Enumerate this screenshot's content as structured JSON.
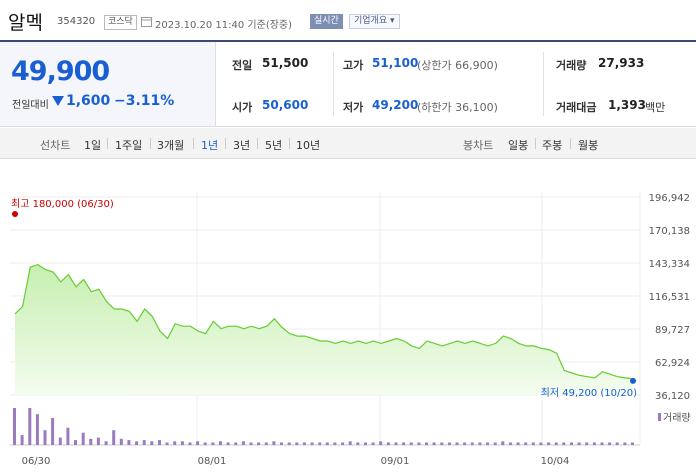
{
  "header": {
    "name": "알멕",
    "code": "354320",
    "market": "코스닥",
    "datetime": "2023.10.20 11:40  기준(장중)",
    "realtime_label": "실시간",
    "company_info_label": "기업개요 ▾"
  },
  "quote": {
    "price": "49,900",
    "change_label": "전일대비",
    "change_abs": "1,600",
    "change_pct": "−3.11%"
  },
  "stats": {
    "prev_close_label": "전일",
    "prev_close": "51,500",
    "open_label": "시가",
    "open": "50,600",
    "high_label": "고가",
    "high": "51,100",
    "upper_limit": "(상한가 66,900)",
    "low_label": "저가",
    "low": "49,200",
    "lower_limit": "(하한가 36,100)",
    "volume_label": "거래량",
    "volume": "27,933",
    "value_label": "거래대금",
    "value": "1,393",
    "value_unit": "백만"
  },
  "period_bar": {
    "chart_label": "선차트",
    "periods": [
      "1일",
      "1주일",
      "3개월",
      "1년",
      "3년",
      "5년",
      "10년"
    ],
    "active": "1년",
    "candle_label": "봉차트",
    "candles": [
      "일봉",
      "주봉",
      "월봉"
    ]
  },
  "colors": {
    "accent": "#1a5fd1",
    "line": "#66cc33",
    "area_top": "#c6efb0",
    "volume": "#9b7bbf",
    "high_marker": "#cc0000"
  },
  "chart_data": {
    "type": "area",
    "x_ticks": [
      "06/30",
      "08/01",
      "09/01",
      "10/04"
    ],
    "y_ticks": [
      "196,942",
      "170,138",
      "143,334",
      "116,531",
      "89,727",
      "62,924",
      "36,120"
    ],
    "ylim": [
      36120,
      196942
    ],
    "high_annotation": "최고 180,000 (06/30)",
    "low_annotation": "최저  49,200 (10/20)",
    "volume_label": "거래량",
    "price": [
      102000,
      108000,
      140000,
      142000,
      138000,
      136000,
      128000,
      134000,
      124000,
      130000,
      120000,
      122000,
      112000,
      106000,
      106000,
      104000,
      96000,
      106000,
      100000,
      88000,
      82000,
      94000,
      92000,
      92000,
      88000,
      86000,
      96000,
      90000,
      92000,
      92000,
      90000,
      92000,
      90000,
      92000,
      98000,
      91000,
      86000,
      84000,
      84000,
      82000,
      80000,
      80000,
      78000,
      80000,
      78000,
      80000,
      78000,
      80000,
      78000,
      80000,
      82000,
      80000,
      76000,
      74000,
      80000,
      78000,
      76000,
      78000,
      80000,
      78000,
      80000,
      78000,
      76000,
      78000,
      84000,
      82000,
      78000,
      76000,
      76000,
      74000,
      73000,
      70000,
      56000,
      54000,
      52000,
      51000,
      50000,
      55000,
      53000,
      51000,
      50000,
      49200
    ],
    "volume": [
      30,
      8,
      30,
      25,
      12,
      22,
      6,
      14,
      4,
      10,
      5,
      6,
      3,
      12,
      5,
      4,
      3,
      4,
      3,
      4,
      2,
      3,
      3,
      2,
      3,
      2,
      2,
      3,
      2,
      2,
      3,
      2,
      2,
      2,
      3,
      2,
      2,
      2,
      2,
      2,
      2,
      2,
      2,
      2,
      3,
      2,
      2,
      2,
      3,
      2,
      2,
      2,
      2,
      2,
      2,
      2,
      2,
      2,
      2,
      2,
      2,
      2,
      2,
      2,
      3,
      2,
      2,
      2,
      2,
      2,
      2,
      2,
      2,
      2,
      2,
      2,
      2,
      2,
      2,
      2,
      2,
      2
    ]
  }
}
